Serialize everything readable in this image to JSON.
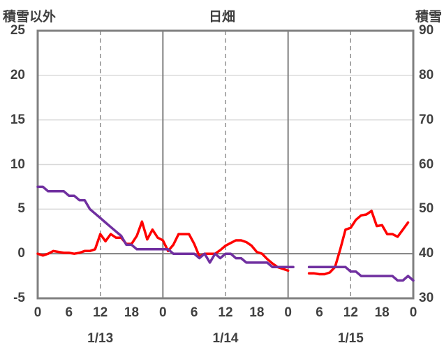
{
  "chart_data": {
    "type": "line",
    "title": "日畑",
    "ylabel_left": "積雪以外",
    "ylabel_right": "積雪",
    "ylim_left": [
      -5,
      25
    ],
    "ylim_right": [
      30,
      90
    ],
    "yticks_left": [
      -5,
      0,
      5,
      10,
      15,
      20,
      25
    ],
    "yticks_right": [
      30,
      40,
      50,
      60,
      70,
      80,
      90
    ],
    "xlim": [
      0,
      72
    ],
    "xticks": [
      0,
      6,
      12,
      18,
      24,
      30,
      36,
      42,
      48,
      54,
      60,
      66,
      72
    ],
    "xtick_labels": [
      "0",
      "6",
      "12",
      "18",
      "0",
      "6",
      "12",
      "18",
      "0",
      "6",
      "12",
      "18",
      "0"
    ],
    "date_labels": [
      {
        "x": 12,
        "label": "1/13"
      },
      {
        "x": 36,
        "label": "1/14"
      },
      {
        "x": 60,
        "label": "1/15"
      }
    ],
    "day_boundaries": [
      24,
      48
    ],
    "grid_dashed_x": [
      12,
      36,
      60
    ],
    "zero_line": 0,
    "series": [
      {
        "axis": "left",
        "color": "#ff0000",
        "segments": [
          [
            [
              0,
              0
            ],
            [
              1,
              -0.2
            ],
            [
              2,
              0
            ],
            [
              3,
              0.3
            ],
            [
              4,
              0.2
            ],
            [
              5,
              0.1
            ],
            [
              6,
              0.1
            ],
            [
              7,
              0
            ],
            [
              8,
              0.1
            ],
            [
              9,
              0.3
            ],
            [
              10,
              0.3
            ],
            [
              11,
              0.5
            ],
            [
              12,
              2.2
            ],
            [
              13,
              1.4
            ],
            [
              14,
              2.2
            ],
            [
              15,
              1.8
            ],
            [
              16,
              1.8
            ],
            [
              17,
              1.1
            ],
            [
              18,
              1.1
            ],
            [
              19,
              2
            ],
            [
              20,
              3.6
            ],
            [
              21,
              1.6
            ],
            [
              22,
              2.7
            ],
            [
              23,
              1.8
            ],
            [
              24,
              1.5
            ],
            [
              25,
              0.3
            ],
            [
              26,
              1
            ],
            [
              27,
              2.2
            ],
            [
              28,
              2.2
            ],
            [
              29,
              2.2
            ],
            [
              30,
              1.1
            ],
            [
              31,
              -0.3
            ],
            [
              32,
              0
            ],
            [
              33,
              0
            ],
            [
              34,
              0
            ],
            [
              35,
              0.4
            ],
            [
              36,
              0.9
            ],
            [
              37,
              1.2
            ],
            [
              38,
              1.5
            ],
            [
              39,
              1.5
            ],
            [
              40,
              1.3
            ],
            [
              41,
              0.9
            ],
            [
              42,
              0.2
            ],
            [
              43,
              0
            ],
            [
              44,
              -0.6
            ],
            [
              45,
              -1.1
            ],
            [
              46,
              -1.5
            ],
            [
              47,
              -1.7
            ],
            [
              48,
              -1.9
            ]
          ],
          [
            [
              52,
              -2.2
            ],
            [
              53,
              -2.2
            ],
            [
              54,
              -2.3
            ],
            [
              55,
              -2.3
            ],
            [
              56,
              -2.1
            ],
            [
              57,
              -1.5
            ],
            [
              58,
              0.5
            ],
            [
              59,
              2.7
            ],
            [
              60,
              2.9
            ],
            [
              61,
              3.8
            ],
            [
              62,
              4.3
            ],
            [
              63,
              4.4
            ],
            [
              64,
              4.8
            ],
            [
              65,
              3.1
            ],
            [
              66,
              3.2
            ],
            [
              67,
              2.2
            ],
            [
              68,
              2.2
            ],
            [
              69,
              1.9
            ],
            [
              70,
              2.7
            ],
            [
              71,
              3.5
            ]
          ]
        ]
      },
      {
        "axis": "right",
        "color": "#7030a0",
        "segments": [
          [
            [
              0,
              55
            ],
            [
              1,
              55
            ],
            [
              2,
              54
            ],
            [
              3,
              54
            ],
            [
              4,
              54
            ],
            [
              5,
              54
            ],
            [
              6,
              53
            ],
            [
              7,
              53
            ],
            [
              8,
              52
            ],
            [
              9,
              52
            ],
            [
              10,
              50
            ],
            [
              11,
              49
            ],
            [
              12,
              48
            ],
            [
              13,
              47
            ],
            [
              14,
              46
            ],
            [
              15,
              45
            ],
            [
              16,
              44
            ],
            [
              17,
              42
            ],
            [
              18,
              42
            ],
            [
              19,
              41
            ],
            [
              20,
              41
            ],
            [
              21,
              41
            ],
            [
              22,
              41
            ],
            [
              23,
              41
            ],
            [
              24,
              41
            ],
            [
              25,
              41
            ],
            [
              26,
              40
            ],
            [
              27,
              40
            ],
            [
              28,
              40
            ],
            [
              29,
              40
            ],
            [
              30,
              40
            ],
            [
              31,
              39
            ],
            [
              32,
              40
            ],
            [
              33,
              38
            ],
            [
              34,
              40
            ],
            [
              35,
              39
            ],
            [
              36,
              40
            ],
            [
              37,
              40
            ],
            [
              38,
              39
            ],
            [
              39,
              39
            ],
            [
              40,
              38
            ],
            [
              41,
              38
            ],
            [
              42,
              38
            ],
            [
              43,
              38
            ],
            [
              44,
              38
            ],
            [
              45,
              37
            ],
            [
              46,
              37
            ],
            [
              47,
              37
            ],
            [
              48,
              37
            ],
            [
              49,
              37
            ]
          ],
          [
            [
              52,
              37
            ],
            [
              53,
              37
            ],
            [
              54,
              37
            ],
            [
              55,
              37
            ],
            [
              56,
              37
            ],
            [
              57,
              37
            ],
            [
              58,
              37
            ],
            [
              59,
              37
            ],
            [
              60,
              36
            ],
            [
              61,
              36
            ],
            [
              62,
              35
            ],
            [
              63,
              35
            ],
            [
              64,
              35
            ],
            [
              65,
              35
            ],
            [
              66,
              35
            ],
            [
              67,
              35
            ],
            [
              68,
              35
            ],
            [
              69,
              34
            ],
            [
              70,
              34
            ],
            [
              71,
              35
            ],
            [
              72,
              34
            ]
          ]
        ]
      }
    ]
  }
}
